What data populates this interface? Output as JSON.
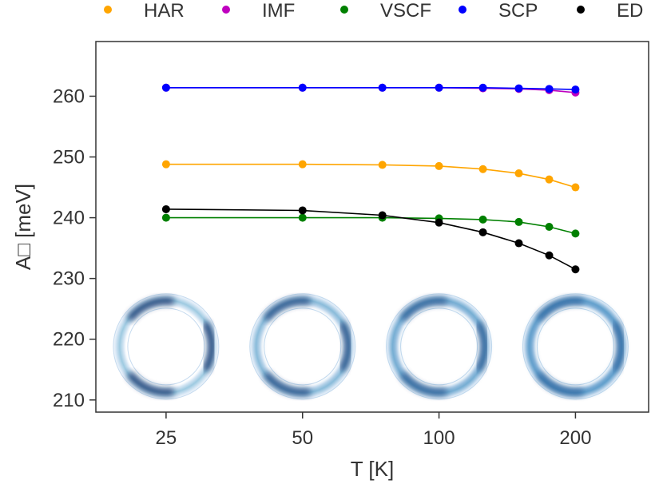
{
  "chart_data": {
    "type": "line",
    "xlabel": "T [K]",
    "ylabel": "A□  [meV]",
    "x_ticks": [
      "25",
      "50",
      "100",
      "200"
    ],
    "x_scale": "log",
    "xlim": [
      17.5,
      290
    ],
    "ylim": [
      208,
      269
    ],
    "y_ticks": [
      210,
      220,
      230,
      240,
      250,
      260
    ],
    "grid": false,
    "legend_position": "top",
    "series": [
      {
        "name": "HAR",
        "color": "#ffa500",
        "x": [
          25,
          50,
          75,
          100,
          125,
          150,
          175,
          200
        ],
        "y": [
          248.8,
          248.8,
          248.7,
          248.5,
          248.0,
          247.3,
          246.3,
          245.0
        ]
      },
      {
        "name": "IMF",
        "color": "#bf00bf",
        "x": [
          25,
          50,
          75,
          100,
          125,
          150,
          175,
          200
        ],
        "y": [
          261.4,
          261.4,
          261.4,
          261.4,
          261.3,
          261.2,
          261.0,
          260.6
        ]
      },
      {
        "name": "VSCF",
        "color": "#008000",
        "x": [
          25,
          50,
          75,
          100,
          125,
          150,
          175,
          200
        ],
        "y": [
          240.0,
          240.0,
          240.0,
          239.9,
          239.7,
          239.3,
          238.5,
          237.4
        ]
      },
      {
        "name": "SCP",
        "color": "#0000ff",
        "x": [
          25,
          50,
          75,
          100,
          125,
          150,
          175,
          200
        ],
        "y": [
          261.4,
          261.4,
          261.4,
          261.4,
          261.4,
          261.3,
          261.2,
          261.1
        ]
      },
      {
        "name": "ED",
        "color": "#000000",
        "x": [
          25,
          50,
          75,
          100,
          125,
          150,
          175,
          200
        ],
        "y": [
          241.4,
          241.2,
          240.4,
          239.2,
          237.6,
          235.8,
          233.8,
          231.5
        ]
      }
    ],
    "insets": [
      {
        "T": 25,
        "description": "ring density"
      },
      {
        "T": 50,
        "description": "ring density"
      },
      {
        "T": 100,
        "description": "ring density"
      },
      {
        "T": 200,
        "description": "ring density"
      }
    ]
  }
}
